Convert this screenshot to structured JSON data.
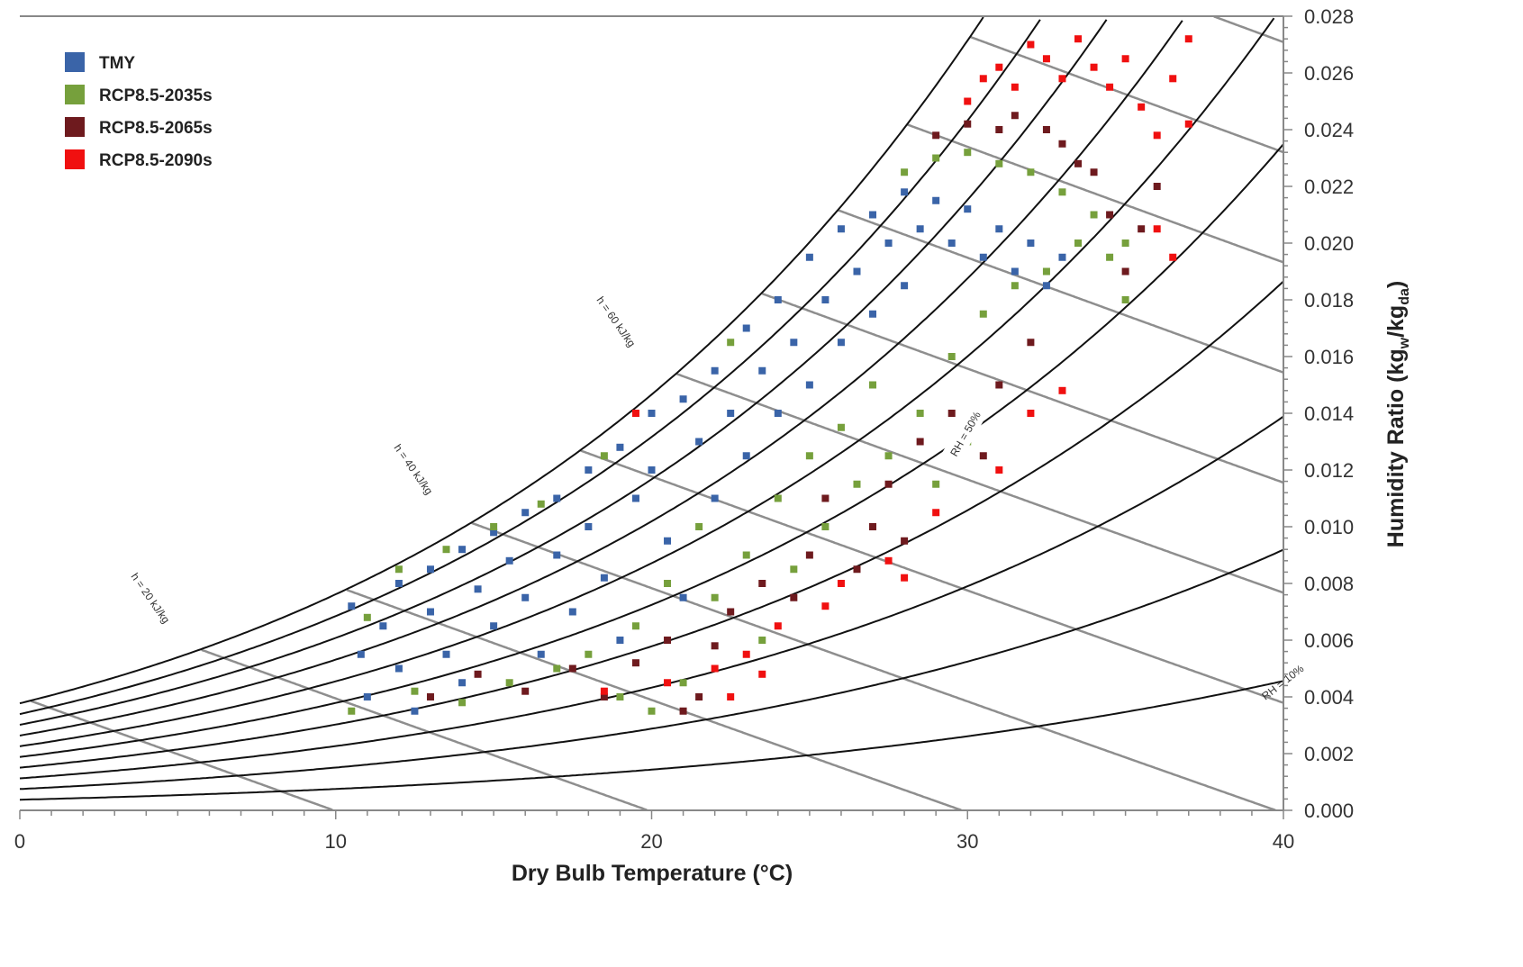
{
  "chart_data": {
    "type": "scatter",
    "title": "",
    "xlabel": "Dry Bulb Temperature (°C)",
    "ylabel": {
      "main": "Humidity Ratio (kg",
      "sub1": "w",
      "mid": "/kg",
      "sub2": "da",
      "end": ")"
    },
    "xlim": [
      0,
      40
    ],
    "ylim": [
      0,
      0.028
    ],
    "x_ticks": [
      "0",
      "10",
      "20",
      "30",
      "40"
    ],
    "y_ticks": [
      "0.000",
      "0.002",
      "0.004",
      "0.006",
      "0.008",
      "0.010",
      "0.012",
      "0.014",
      "0.016",
      "0.018",
      "0.020",
      "0.022",
      "0.024",
      "0.026",
      "0.028"
    ],
    "legend_position": "top-left",
    "rh_curves_percent": [
      10,
      20,
      30,
      40,
      50,
      60,
      70,
      80,
      90,
      100
    ],
    "enthalpy_lines_kj_per_kg": [
      10,
      20,
      30,
      40,
      50,
      60,
      70,
      80,
      90,
      100,
      110
    ],
    "annotations": [
      "h = 20 kJ/kg",
      "h = 40 kJ/kg",
      "h = 60 kJ/kg",
      "RH = 50%",
      "RH = 10%"
    ],
    "series": [
      {
        "name": "TMY",
        "color": "#3a64a8",
        "points": [
          [
            10.5,
            0.0072
          ],
          [
            10.8,
            0.0055
          ],
          [
            11,
            0.004
          ],
          [
            11.5,
            0.0065
          ],
          [
            12,
            0.008
          ],
          [
            12,
            0.005
          ],
          [
            12.5,
            0.0035
          ],
          [
            13,
            0.0085
          ],
          [
            13,
            0.007
          ],
          [
            13.5,
            0.0055
          ],
          [
            14,
            0.0092
          ],
          [
            14,
            0.0045
          ],
          [
            14.5,
            0.0078
          ],
          [
            15,
            0.0098
          ],
          [
            15,
            0.0065
          ],
          [
            15.5,
            0.0088
          ],
          [
            16,
            0.0105
          ],
          [
            16,
            0.0075
          ],
          [
            16.5,
            0.0055
          ],
          [
            17,
            0.011
          ],
          [
            17,
            0.009
          ],
          [
            17.5,
            0.007
          ],
          [
            18,
            0.012
          ],
          [
            18,
            0.01
          ],
          [
            18.5,
            0.0082
          ],
          [
            19,
            0.0128
          ],
          [
            19,
            0.006
          ],
          [
            19.5,
            0.011
          ],
          [
            20,
            0.014
          ],
          [
            20,
            0.012
          ],
          [
            20.5,
            0.0095
          ],
          [
            21,
            0.0145
          ],
          [
            21,
            0.0075
          ],
          [
            21.5,
            0.013
          ],
          [
            22,
            0.0155
          ],
          [
            22,
            0.011
          ],
          [
            22.5,
            0.014
          ],
          [
            23,
            0.017
          ],
          [
            23,
            0.0125
          ],
          [
            23.5,
            0.0155
          ],
          [
            24,
            0.018
          ],
          [
            24,
            0.014
          ],
          [
            24.5,
            0.0165
          ],
          [
            25,
            0.0195
          ],
          [
            25,
            0.015
          ],
          [
            25.5,
            0.018
          ],
          [
            26,
            0.0205
          ],
          [
            26,
            0.0165
          ],
          [
            26.5,
            0.019
          ],
          [
            27,
            0.021
          ],
          [
            27,
            0.0175
          ],
          [
            27.5,
            0.02
          ],
          [
            28,
            0.0218
          ],
          [
            28,
            0.0185
          ],
          [
            28.5,
            0.0205
          ],
          [
            29,
            0.0215
          ],
          [
            29.5,
            0.02
          ],
          [
            30,
            0.0212
          ],
          [
            30.5,
            0.0195
          ],
          [
            31,
            0.0205
          ],
          [
            31.5,
            0.019
          ],
          [
            32,
            0.02
          ],
          [
            32.5,
            0.0185
          ],
          [
            33,
            0.0195
          ]
        ]
      },
      {
        "name": "RCP8.5-2035s",
        "color": "#76a03c",
        "points": [
          [
            10.5,
            0.0035
          ],
          [
            11,
            0.0068
          ],
          [
            12,
            0.0085
          ],
          [
            12.5,
            0.0042
          ],
          [
            13.5,
            0.0092
          ],
          [
            14,
            0.0038
          ],
          [
            15,
            0.01
          ],
          [
            15.5,
            0.0045
          ],
          [
            16.5,
            0.0108
          ],
          [
            17,
            0.005
          ],
          [
            18,
            0.0055
          ],
          [
            18.5,
            0.0125
          ],
          [
            19,
            0.004
          ],
          [
            19.5,
            0.0065
          ],
          [
            20,
            0.0035
          ],
          [
            20.5,
            0.008
          ],
          [
            21,
            0.0045
          ],
          [
            21.5,
            0.01
          ],
          [
            22,
            0.0075
          ],
          [
            22.5,
            0.0165
          ],
          [
            23,
            0.009
          ],
          [
            23.5,
            0.006
          ],
          [
            24,
            0.011
          ],
          [
            24.5,
            0.0085
          ],
          [
            25,
            0.0125
          ],
          [
            25.5,
            0.01
          ],
          [
            26,
            0.0135
          ],
          [
            26.5,
            0.0115
          ],
          [
            27,
            0.015
          ],
          [
            27.5,
            0.0125
          ],
          [
            28,
            0.0225
          ],
          [
            28.5,
            0.014
          ],
          [
            29,
            0.023
          ],
          [
            29,
            0.0115
          ],
          [
            29.5,
            0.016
          ],
          [
            30,
            0.0232
          ],
          [
            30,
            0.013
          ],
          [
            30.5,
            0.0175
          ],
          [
            31,
            0.0228
          ],
          [
            31.5,
            0.0185
          ],
          [
            32,
            0.0225
          ],
          [
            32.5,
            0.019
          ],
          [
            33,
            0.0218
          ],
          [
            33.5,
            0.02
          ],
          [
            34,
            0.021
          ],
          [
            34.5,
            0.0195
          ],
          [
            35,
            0.02
          ],
          [
            35,
            0.018
          ]
        ]
      },
      {
        "name": "RCP8.5-2065s",
        "color": "#6e1a1e",
        "points": [
          [
            13,
            0.004
          ],
          [
            14.5,
            0.0048
          ],
          [
            16,
            0.0042
          ],
          [
            17.5,
            0.005
          ],
          [
            18.5,
            0.004
          ],
          [
            19.5,
            0.0052
          ],
          [
            20.5,
            0.006
          ],
          [
            21,
            0.0035
          ],
          [
            21.5,
            0.004
          ],
          [
            22,
            0.0058
          ],
          [
            22.5,
            0.007
          ],
          [
            23.5,
            0.008
          ],
          [
            24.5,
            0.0075
          ],
          [
            25,
            0.009
          ],
          [
            25.5,
            0.011
          ],
          [
            26.5,
            0.0085
          ],
          [
            27,
            0.01
          ],
          [
            27.5,
            0.0115
          ],
          [
            28,
            0.0095
          ],
          [
            28.5,
            0.013
          ],
          [
            29,
            0.0238
          ],
          [
            29.5,
            0.014
          ],
          [
            30,
            0.0242
          ],
          [
            30.5,
            0.0125
          ],
          [
            31,
            0.024
          ],
          [
            31,
            0.015
          ],
          [
            31.5,
            0.0245
          ],
          [
            32,
            0.0165
          ],
          [
            32.5,
            0.024
          ],
          [
            33,
            0.0235
          ],
          [
            33.5,
            0.0228
          ],
          [
            34,
            0.0225
          ],
          [
            34.5,
            0.021
          ],
          [
            35,
            0.019
          ],
          [
            35.5,
            0.0205
          ],
          [
            36,
            0.022
          ]
        ]
      },
      {
        "name": "RCP8.5-2090s",
        "color": "#f01010",
        "points": [
          [
            18.5,
            0.0042
          ],
          [
            19.5,
            0.014
          ],
          [
            20.5,
            0.0045
          ],
          [
            22,
            0.005
          ],
          [
            22.5,
            0.004
          ],
          [
            23,
            0.0055
          ],
          [
            23.5,
            0.0048
          ],
          [
            24,
            0.0065
          ],
          [
            25.5,
            0.0072
          ],
          [
            26,
            0.008
          ],
          [
            27.5,
            0.0088
          ],
          [
            28,
            0.0082
          ],
          [
            29,
            0.0105
          ],
          [
            29.5,
            0.0128
          ],
          [
            30,
            0.025
          ],
          [
            30.5,
            0.0258
          ],
          [
            31,
            0.012
          ],
          [
            31,
            0.0262
          ],
          [
            31.5,
            0.0255
          ],
          [
            32,
            0.027
          ],
          [
            32,
            0.014
          ],
          [
            32.5,
            0.0265
          ],
          [
            33,
            0.0258
          ],
          [
            33,
            0.0148
          ],
          [
            33.5,
            0.0272
          ],
          [
            34,
            0.0262
          ],
          [
            34.5,
            0.0255
          ],
          [
            35,
            0.0265
          ],
          [
            35.5,
            0.0248
          ],
          [
            36,
            0.0238
          ],
          [
            36.5,
            0.0258
          ],
          [
            36.5,
            0.0195
          ],
          [
            37,
            0.0242
          ],
          [
            36,
            0.0205
          ],
          [
            37,
            0.0272
          ]
        ]
      }
    ]
  }
}
